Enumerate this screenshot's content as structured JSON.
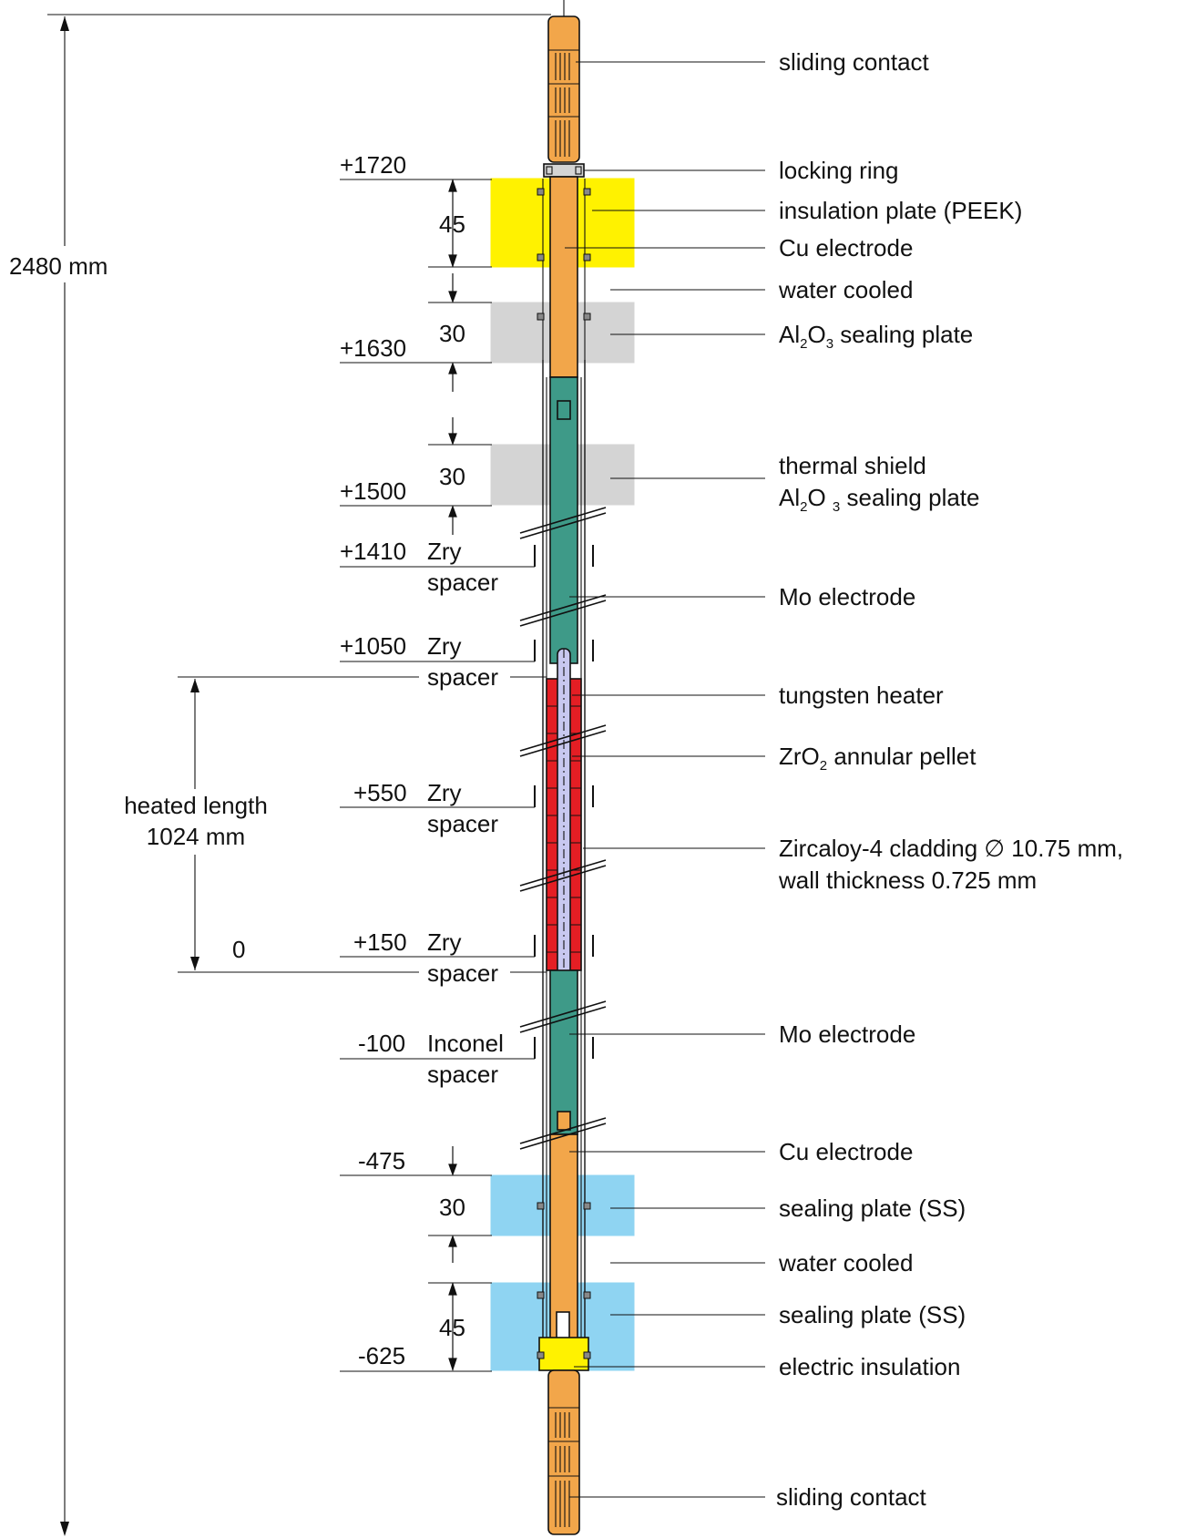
{
  "overall": {
    "total_length": "2480 mm"
  },
  "labels": {
    "sliding_contact_top": "sliding contact",
    "locking_ring": "locking ring",
    "insulation_plate": "insulation plate (PEEK)",
    "cu_electrode_top": "Cu electrode",
    "water_cooled_top": "water cooled",
    "al2o3_sealing_plate": {
      "p1": "Al",
      "s1": "2",
      "p2": "O",
      "s2": "3",
      "p3": " sealing plate"
    },
    "thermal_shield_line1": "thermal shield",
    "thermal_shield_line2": {
      "p1": "Al",
      "s1": "2",
      "p2": "O ",
      "s2": "3",
      "p3": " sealing plate"
    },
    "mo_electrode_top": "Mo electrode",
    "tungsten_heater": "tungsten heater",
    "zro2_pellet": {
      "p1": "ZrO",
      "s1": "2",
      "p3": " annular pellet"
    },
    "cladding_line1": "Zircaloy-4 cladding ∅ 10.75 mm,",
    "cladding_line2": "wall thickness 0.725 mm",
    "mo_electrode_bottom": "Mo electrode",
    "cu_electrode_bottom": "Cu electrode",
    "sealing_plate_ss_1": "sealing plate (SS)",
    "water_cooled_bottom": "water cooled",
    "sealing_plate_ss_2": "sealing plate (SS)",
    "electric_insulation": "electric insulation",
    "sliding_contact_bottom": "sliding contact"
  },
  "elevations": {
    "e1720": "+1720",
    "e1630": "+1630",
    "e1500": "+1500",
    "e1410": "+1410",
    "e1050": "+1050",
    "e550": "+550",
    "e150": "+150",
    "e0": "0",
    "em100": "-100",
    "em475": "-475",
    "em625": "-625"
  },
  "spacers": {
    "s1410_mat": "Zry",
    "s1050_mat": "Zry",
    "s550_mat": "Zry",
    "s150_mat": "Zry",
    "sm100_mat": "Inconel",
    "word": "spacer"
  },
  "thickness": {
    "peek": "45",
    "al2o3_1": "30",
    "al2o3_2": "30",
    "ss_1": "30",
    "ss_2": "45"
  },
  "heated": {
    "line1": "heated length",
    "line2": "1024 mm"
  },
  "colors": {
    "copper": "#f2a64a",
    "molybdenum": "#3e9a88",
    "zro2": "#e41e24",
    "peek": "#fff200",
    "al2o3": "#d4d4d4",
    "stainless": "#8fd4f2",
    "tungsten": "#c8c8f0"
  }
}
